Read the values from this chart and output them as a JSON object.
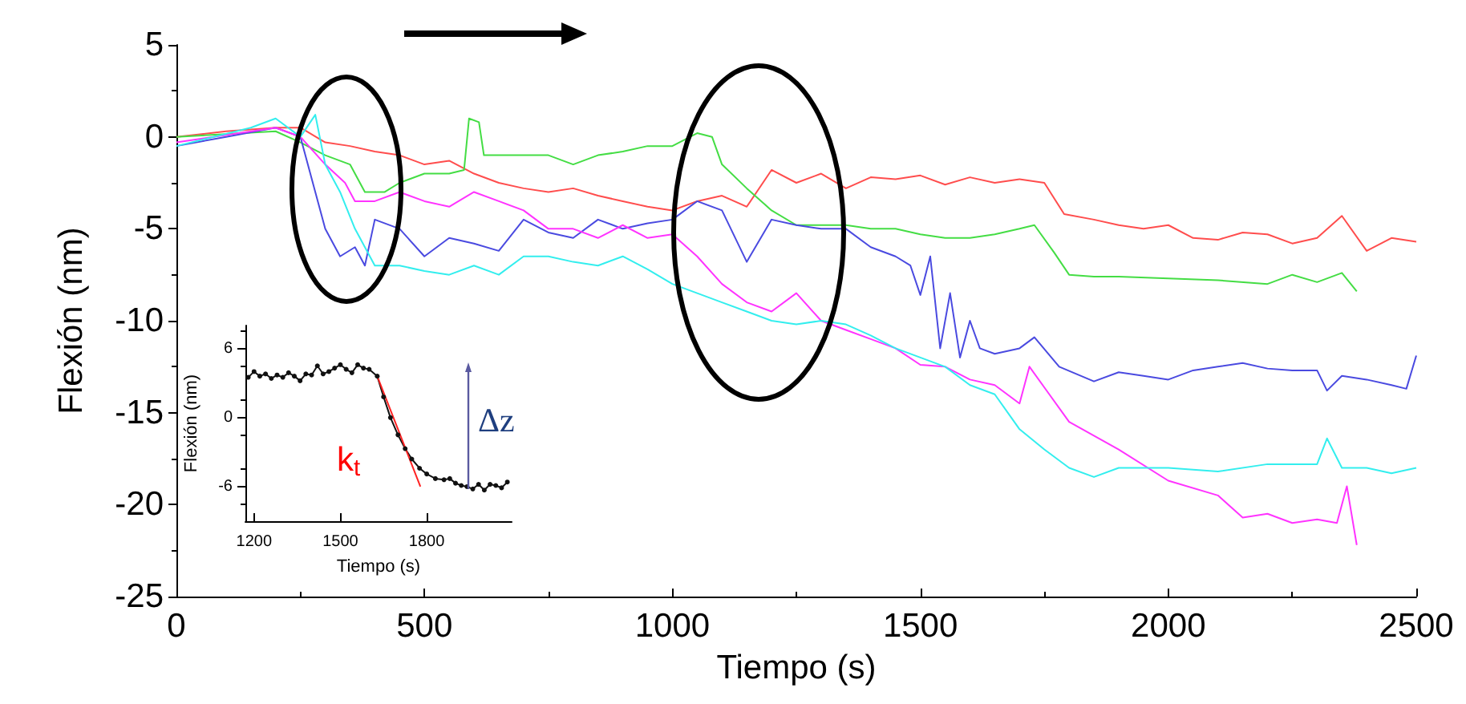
{
  "chart_data": [
    {
      "type": "line",
      "xlabel": "Tiempo (s)",
      "ylabel": "Flexión (nm)",
      "xlim": [
        0,
        2500
      ],
      "ylim": [
        -25,
        5
      ],
      "xticks": [
        0,
        500,
        1000,
        1500,
        2000,
        2500
      ],
      "yticks": [
        -25,
        -20,
        -15,
        -10,
        -5,
        0,
        5
      ],
      "grid": false,
      "marker": "none",
      "series": [
        {
          "color": "#ff4d4d",
          "x": [
            0,
            100,
            200,
            250,
            300,
            350,
            400,
            450,
            500,
            550,
            600,
            650,
            700,
            750,
            800,
            850,
            900,
            950,
            1000,
            1050,
            1100,
            1150,
            1200,
            1250,
            1300,
            1350,
            1400,
            1450,
            1500,
            1550,
            1600,
            1650,
            1700,
            1750,
            1790,
            1850,
            1900,
            1950,
            2000,
            2050,
            2100,
            2150,
            2200,
            2250,
            2300,
            2350,
            2400,
            2450,
            2500
          ],
          "values": [
            0,
            0.3,
            0.5,
            0.5,
            -0.3,
            -0.5,
            -0.8,
            -1,
            -1.5,
            -1.3,
            -2,
            -2.5,
            -2.8,
            -3,
            -2.8,
            -3.2,
            -3.5,
            -3.8,
            -4,
            -3.5,
            -3.2,
            -3.8,
            -1.8,
            -2.5,
            -2,
            -2.8,
            -2.2,
            -2.3,
            -2.1,
            -2.6,
            -2.2,
            -2.5,
            -2.3,
            -2.5,
            -4.2,
            -4.5,
            -4.8,
            -5,
            -4.8,
            -5.5,
            -5.6,
            -5.2,
            -5.3,
            -5.8,
            -5.5,
            -4.3,
            -6.2,
            -5.5,
            -5.7
          ]
        },
        {
          "color": "#44dd44",
          "x": [
            0,
            200,
            250,
            300,
            350,
            380,
            420,
            450,
            500,
            550,
            580,
            590,
            610,
            620,
            700,
            750,
            800,
            850,
            900,
            950,
            1000,
            1050,
            1080,
            1100,
            1150,
            1200,
            1250,
            1300,
            1350,
            1400,
            1450,
            1500,
            1550,
            1600,
            1650,
            1700,
            1730,
            1770,
            1800,
            1850,
            1900,
            2000,
            2100,
            2200,
            2250,
            2300,
            2350,
            2380
          ],
          "values": [
            0,
            0.3,
            -0.3,
            -1,
            -1.5,
            -3,
            -3,
            -2.5,
            -2,
            -2,
            -1.8,
            1,
            0.8,
            -1,
            -1,
            -1,
            -1.5,
            -1,
            -0.8,
            -0.5,
            -0.5,
            0.2,
            0,
            -1.5,
            -2.8,
            -4,
            -4.8,
            -4.8,
            -4.8,
            -5,
            -5,
            -5.3,
            -5.5,
            -5.5,
            -5.3,
            -5,
            -4.8,
            -6.3,
            -7.5,
            -7.6,
            -7.6,
            -7.7,
            -7.8,
            -8,
            -7.5,
            -7.9,
            -7.4,
            -8.4
          ]
        },
        {
          "color": "#4a4ae0",
          "x": [
            0,
            100,
            200,
            250,
            280,
            300,
            330,
            360,
            380,
            400,
            450,
            500,
            550,
            600,
            650,
            700,
            750,
            800,
            850,
            900,
            950,
            1000,
            1050,
            1100,
            1150,
            1200,
            1250,
            1300,
            1350,
            1400,
            1450,
            1480,
            1500,
            1520,
            1540,
            1560,
            1580,
            1600,
            1620,
            1650,
            1700,
            1730,
            1780,
            1850,
            1900,
            1950,
            2000,
            2050,
            2100,
            2150,
            2200,
            2250,
            2300,
            2320,
            2350,
            2400,
            2450,
            2480,
            2500
          ],
          "values": [
            -0.5,
            0,
            0.5,
            0,
            -3,
            -5,
            -6.5,
            -6,
            -7,
            -4.5,
            -5,
            -6.5,
            -5.5,
            -5.8,
            -6.2,
            -4.5,
            -5.2,
            -5.5,
            -4.5,
            -5,
            -4.7,
            -4.5,
            -3.5,
            -4,
            -6.8,
            -4.5,
            -4.8,
            -5,
            -5,
            -6,
            -6.5,
            -7,
            -8.6,
            -6.5,
            -11.5,
            -8.5,
            -12,
            -10,
            -11.5,
            -11.8,
            -11.5,
            -10.9,
            -12.5,
            -13.3,
            -12.8,
            -13,
            -13.2,
            -12.7,
            -12.5,
            -12.3,
            -12.6,
            -12.7,
            -12.7,
            -13.8,
            -13,
            -13.2,
            -13.5,
            -13.7,
            -11.9
          ]
        },
        {
          "color": "#ff33ff",
          "x": [
            0,
            200,
            250,
            300,
            340,
            360,
            400,
            450,
            500,
            550,
            600,
            650,
            700,
            750,
            800,
            850,
            900,
            950,
            1000,
            1050,
            1100,
            1150,
            1200,
            1250,
            1300,
            1350,
            1400,
            1450,
            1500,
            1550,
            1600,
            1650,
            1700,
            1720,
            1760,
            1800,
            1900,
            2000,
            2100,
            2150,
            2200,
            2250,
            2300,
            2340,
            2360,
            2380
          ],
          "values": [
            -0.3,
            0.5,
            0,
            -1.5,
            -2.5,
            -3.5,
            -3.5,
            -3,
            -3.5,
            -3.8,
            -3,
            -3.5,
            -4,
            -5,
            -5,
            -5.5,
            -4.8,
            -5.5,
            -5.3,
            -6.5,
            -8,
            -9,
            -9.5,
            -8.5,
            -10,
            -10.5,
            -11,
            -11.5,
            -12.4,
            -12.5,
            -13.2,
            -13.5,
            -14.5,
            -12.5,
            -14,
            -15.5,
            -17,
            -18.7,
            -19.5,
            -20.7,
            -20.5,
            -21,
            -20.8,
            -21,
            -19,
            -22.2
          ]
        },
        {
          "color": "#33eeee",
          "x": [
            0,
            150,
            200,
            250,
            280,
            300,
            330,
            360,
            400,
            450,
            500,
            550,
            600,
            650,
            700,
            750,
            800,
            850,
            900,
            950,
            1000,
            1050,
            1100,
            1150,
            1200,
            1250,
            1300,
            1350,
            1400,
            1450,
            1500,
            1550,
            1600,
            1650,
            1700,
            1750,
            1800,
            1850,
            1900,
            2000,
            2100,
            2200,
            2300,
            2320,
            2350,
            2400,
            2450,
            2500
          ],
          "values": [
            -0.5,
            0.5,
            1,
            0,
            1.2,
            -1.5,
            -3,
            -5,
            -7,
            -7,
            -7.3,
            -7.5,
            -7,
            -7.5,
            -6.5,
            -6.5,
            -6.8,
            -7,
            -6.5,
            -7.2,
            -8,
            -8.5,
            -9,
            -9.5,
            -10,
            -10.2,
            -10,
            -10.2,
            -10.8,
            -11.5,
            -12,
            -12.5,
            -13.5,
            -14,
            -15.9,
            -17,
            -18,
            -18.5,
            -18,
            -18,
            -18.2,
            -17.8,
            -17.8,
            -16.4,
            -18,
            -18,
            -18.3,
            -18
          ]
        }
      ]
    },
    {
      "type": "line",
      "xlabel": "Tiempo (s)",
      "ylabel": "Flexión (nm)",
      "xlim": [
        1170,
        2095
      ],
      "ylim": [
        -9,
        8
      ],
      "xticks": [
        1200,
        1500,
        1800
      ],
      "yticks": [
        -6,
        0,
        6
      ],
      "grid": false,
      "marker": "circle",
      "annotations": [
        "k$_{t}$",
        "Δz"
      ],
      "series": [
        {
          "color": "#111111",
          "x": [
            1180,
            1200,
            1220,
            1240,
            1260,
            1280,
            1300,
            1320,
            1340,
            1360,
            1380,
            1400,
            1420,
            1440,
            1460,
            1480,
            1500,
            1520,
            1540,
            1560,
            1580,
            1600,
            1628,
            1650,
            1674,
            1700,
            1725,
            1748,
            1775,
            1800,
            1830,
            1860,
            1880,
            1900,
            1920,
            1940,
            1960,
            1980,
            2000,
            2020,
            2040,
            2060,
            2080
          ],
          "values": [
            3.5,
            4,
            3.6,
            3.8,
            3.4,
            3.7,
            3.5,
            3.9,
            3.6,
            3.2,
            3.8,
            3.7,
            4.5,
            3.8,
            4,
            4.3,
            4.6,
            4.2,
            3.9,
            4.6,
            4.3,
            4.2,
            3.6,
            1.8,
            0,
            -1.5,
            -2.7,
            -3.6,
            -4.4,
            -4.9,
            -5.3,
            -5.4,
            -5.3,
            -5.7,
            -5.9,
            -6,
            -6.2,
            -5.8,
            -6.3,
            -5.8,
            -5.9,
            -6.1,
            -5.6
          ]
        },
        {
          "color": "#ff2222",
          "marker": "none",
          "x": [
            1628,
            1778
          ],
          "values": [
            3.6,
            -6
          ]
        }
      ]
    }
  ]
}
